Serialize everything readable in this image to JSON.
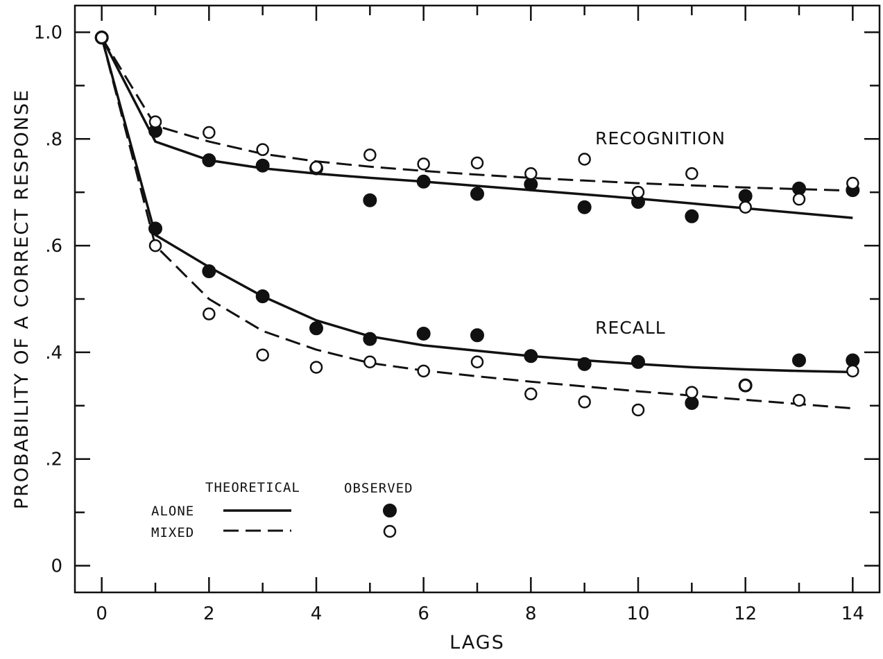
{
  "chart_data": {
    "type": "line",
    "xlabel": "LAGS",
    "ylabel": "PROBABILITY OF A CORRECT RESPONSE",
    "xlim": [
      -0.5,
      14.5
    ],
    "ylim": [
      -0.05,
      1.05
    ],
    "x_ticks": [
      0,
      2,
      4,
      6,
      8,
      10,
      12,
      14
    ],
    "x_tick_labels": [
      "0",
      "2",
      "4",
      "6",
      "8",
      "10",
      "12",
      "14"
    ],
    "x_minor_ticks": [
      1,
      3,
      5,
      7,
      9,
      11,
      13
    ],
    "y_ticks": [
      0,
      0.2,
      0.4,
      0.6,
      0.8,
      1.0
    ],
    "y_tick_labels": [
      "0",
      ".2",
      ".4",
      ".6",
      ".8",
      "1.0"
    ],
    "y_minor_ticks": [
      0.1,
      0.3,
      0.5,
      0.7,
      0.9
    ],
    "grid": false,
    "annotations": [
      {
        "text": "RECOGNITION",
        "x": 9.2,
        "y": 0.79
      },
      {
        "text": "RECALL",
        "x": 9.2,
        "y": 0.435
      }
    ],
    "legend": {
      "placement": "bottom-left",
      "theoretical_header": "THEORETICAL",
      "observed_header": "OBSERVED",
      "entries": [
        {
          "label": "ALONE",
          "line": "solid",
          "marker": "filled"
        },
        {
          "label": "MIXED",
          "line": "dashed",
          "marker": "open"
        }
      ]
    },
    "series": [
      {
        "task": "RECOGNITION",
        "condition": "ALONE",
        "kind": "theoretical",
        "line": "solid",
        "x": [
          0,
          1,
          2,
          3,
          4,
          5,
          6,
          7,
          8,
          9,
          10,
          11,
          12,
          13,
          14
        ],
        "y": [
          0.99,
          0.795,
          0.76,
          0.745,
          0.735,
          0.727,
          0.72,
          0.712,
          0.704,
          0.696,
          0.688,
          0.679,
          0.67,
          0.661,
          0.652
        ]
      },
      {
        "task": "RECOGNITION",
        "condition": "MIXED",
        "kind": "theoretical",
        "line": "dashed",
        "x": [
          0,
          1,
          2,
          3,
          4,
          5,
          6,
          7,
          8,
          9,
          10,
          11,
          12,
          13,
          14
        ],
        "y": [
          0.99,
          0.825,
          0.795,
          0.772,
          0.758,
          0.748,
          0.74,
          0.733,
          0.727,
          0.722,
          0.717,
          0.713,
          0.709,
          0.706,
          0.703
        ]
      },
      {
        "task": "RECALL",
        "condition": "ALONE",
        "kind": "theoretical",
        "line": "solid",
        "x": [
          0,
          1,
          2,
          3,
          4,
          5,
          6,
          7,
          8,
          9,
          10,
          11,
          12,
          13,
          14
        ],
        "y": [
          0.99,
          0.62,
          0.56,
          0.505,
          0.46,
          0.43,
          0.413,
          0.403,
          0.393,
          0.385,
          0.378,
          0.372,
          0.368,
          0.365,
          0.363
        ]
      },
      {
        "task": "RECALL",
        "condition": "MIXED",
        "kind": "theoretical",
        "line": "dashed",
        "x": [
          0,
          1,
          2,
          3,
          4,
          5,
          6,
          7,
          8,
          9,
          10,
          11,
          12,
          13,
          14
        ],
        "y": [
          0.99,
          0.6,
          0.5,
          0.44,
          0.405,
          0.38,
          0.366,
          0.355,
          0.345,
          0.336,
          0.327,
          0.319,
          0.311,
          0.303,
          0.295
        ]
      },
      {
        "task": "RECOGNITION",
        "condition": "ALONE",
        "kind": "observed",
        "marker": "filled",
        "x": [
          0,
          1,
          2,
          3,
          4,
          5,
          6,
          7,
          8,
          9,
          10,
          11,
          12,
          13,
          14
        ],
        "y": [
          0.99,
          0.815,
          0.76,
          0.75,
          0.745,
          0.685,
          0.72,
          0.697,
          0.715,
          0.672,
          0.682,
          0.655,
          0.693,
          0.707,
          0.704
        ]
      },
      {
        "task": "RECOGNITION",
        "condition": "MIXED",
        "kind": "observed",
        "marker": "open",
        "x": [
          0,
          1,
          2,
          3,
          4,
          5,
          6,
          7,
          8,
          9,
          10,
          11,
          12,
          13,
          14
        ],
        "y": [
          0.99,
          0.832,
          0.812,
          0.78,
          0.747,
          0.77,
          0.753,
          0.755,
          0.735,
          0.762,
          0.7,
          0.735,
          0.672,
          0.687,
          0.717
        ]
      },
      {
        "task": "RECALL",
        "condition": "ALONE",
        "kind": "observed",
        "marker": "filled",
        "x": [
          0,
          1,
          2,
          3,
          4,
          5,
          6,
          7,
          8,
          9,
          10,
          11,
          12,
          13,
          14
        ],
        "y": [
          0.99,
          0.632,
          0.552,
          0.505,
          0.445,
          0.425,
          0.435,
          0.432,
          0.393,
          0.378,
          0.382,
          0.305,
          0.338,
          0.385,
          0.385
        ]
      },
      {
        "task": "RECALL",
        "condition": "MIXED",
        "kind": "observed",
        "marker": "open",
        "x": [
          0,
          1,
          2,
          3,
          4,
          5,
          6,
          7,
          8,
          9,
          10,
          11,
          12,
          13,
          14
        ],
        "y": [
          0.99,
          0.6,
          0.472,
          0.395,
          0.372,
          0.382,
          0.365,
          0.382,
          0.322,
          0.307,
          0.292,
          0.325,
          0.338,
          0.31,
          0.365
        ]
      }
    ]
  }
}
